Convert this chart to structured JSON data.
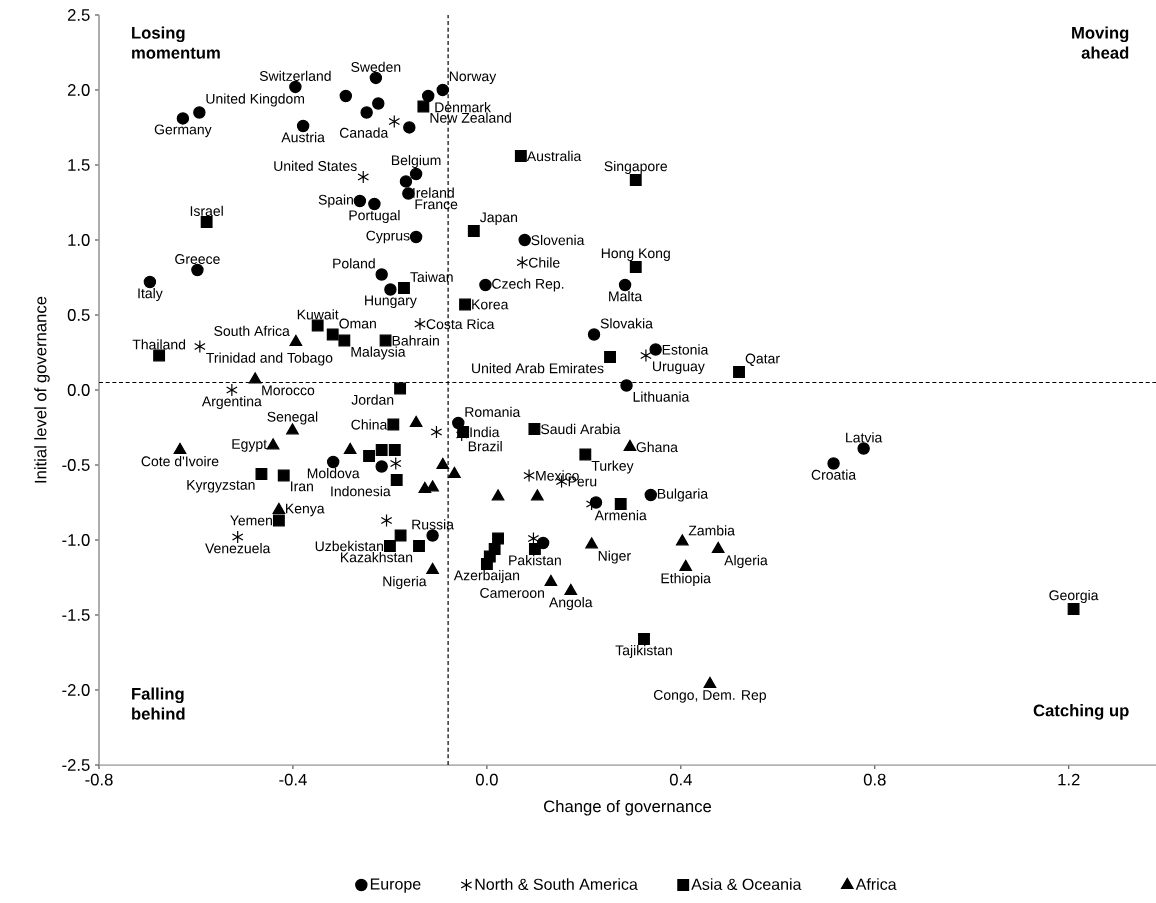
{
  "chart_data": {
    "type": "scatter",
    "xlabel": "Change of governance",
    "ylabel": "Initial level of governance",
    "xlim": [
      -0.8,
      1.38
    ],
    "ylim": [
      -2.5,
      2.5
    ],
    "xticks": [
      {
        "value": -0.8,
        "label": "-0.8"
      },
      {
        "value": -0.4,
        "label": "-0.4"
      },
      {
        "value": 0,
        "label": "0.0"
      },
      {
        "value": 0.4,
        "label": "0.4"
      },
      {
        "value": 0.8,
        "label": "0.8"
      },
      {
        "value": 1.2,
        "label": "1.2"
      }
    ],
    "yticks": [
      {
        "value": -2.5,
        "label": "-2.5"
      },
      {
        "value": -2,
        "label": "-2.0"
      },
      {
        "value": -1.5,
        "label": "-1.5"
      },
      {
        "value": -1,
        "label": "-1.0"
      },
      {
        "value": -0.5,
        "label": "-0.5"
      },
      {
        "value": 0,
        "label": "0.0"
      },
      {
        "value": 0.5,
        "label": "0.5"
      },
      {
        "value": 1,
        "label": "1.0"
      },
      {
        "value": 1.5,
        "label": "1.5"
      },
      {
        "value": 2,
        "label": "2.0"
      },
      {
        "value": 2.5,
        "label": "2.5"
      }
    ],
    "grid": false,
    "legend": "bottom",
    "ref_lines": [
      {
        "axis": "x",
        "value": -0.08,
        "line_style": "dashed"
      },
      {
        "axis": "y",
        "value": 0.05,
        "line_style": "dashed"
      }
    ],
    "series": [
      {
        "name": "Europe",
        "color": "#000000",
        "marker": "circle",
        "x": [
          -0.627,
          -0.593,
          -0.395,
          -0.379,
          -0.291,
          -0.229,
          -0.224,
          -0.248,
          -0.091,
          -0.121,
          -0.16,
          -0.146,
          -0.167,
          -0.162,
          -0.262,
          -0.232,
          -0.146,
          -0.597,
          -0.695,
          -0.217,
          -0.199,
          0.078,
          -0.003,
          0.285,
          0.221,
          0.348,
          0.288,
          -0.059,
          -0.217,
          -0.317,
          -0.112,
          0.338,
          0.225,
          0.116,
          0.715,
          0.777
        ],
        "values": [
          1.81,
          1.85,
          2.02,
          1.76,
          1.96,
          2.08,
          1.91,
          1.85,
          2.0,
          1.96,
          1.75,
          1.44,
          1.39,
          1.31,
          1.26,
          1.24,
          1.02,
          0.8,
          0.72,
          0.77,
          0.67,
          1.0,
          0.7,
          0.7,
          0.37,
          0.27,
          0.03,
          -0.22,
          -0.51,
          -0.48,
          -0.97,
          -0.7,
          -0.75,
          -1.02,
          -0.49,
          -0.39
        ]
      },
      {
        "name": "North & South America",
        "color": "#000000",
        "marker": "cross",
        "x": [
          -0.191,
          -0.255,
          -0.138,
          0.073,
          -0.592,
          -0.526,
          0.328,
          -0.104,
          -0.052,
          -0.188,
          0.087,
          0.154,
          0.216,
          -0.514,
          -0.207,
          0.096
        ],
        "values": [
          1.79,
          1.42,
          0.44,
          0.85,
          0.29,
          0.0,
          0.23,
          -0.28,
          -0.3,
          -0.49,
          -0.57,
          -0.61,
          -0.76,
          -0.98,
          -0.87,
          -0.99
        ]
      },
      {
        "name": "Asia & Oceania",
        "color": "#000000",
        "marker": "square",
        "x": [
          -0.131,
          0.07,
          0.307,
          -0.578,
          -0.027,
          0.307,
          -0.171,
          -0.045,
          -0.349,
          -0.318,
          -0.294,
          -0.209,
          -0.676,
          0.254,
          0.52,
          -0.179,
          -0.193,
          -0.049,
          0.098,
          -0.217,
          -0.19,
          -0.243,
          -0.186,
          0.203,
          -0.465,
          -0.419,
          -0.429,
          0.276,
          -0.2,
          -0.14,
          -0.178,
          0.0,
          0.006,
          0.016,
          0.023,
          0.099,
          0.324,
          1.21
        ],
        "values": [
          1.89,
          1.56,
          1.4,
          1.12,
          1.06,
          0.82,
          0.68,
          0.57,
          0.43,
          0.37,
          0.33,
          0.33,
          0.23,
          0.22,
          0.12,
          0.01,
          -0.23,
          -0.28,
          -0.26,
          -0.4,
          -0.4,
          -0.44,
          -0.6,
          -0.43,
          -0.56,
          -0.57,
          -0.87,
          -0.76,
          -1.04,
          -1.04,
          -0.97,
          -1.16,
          -1.11,
          -1.06,
          -0.99,
          -1.06,
          -1.66,
          -1.46
        ]
      },
      {
        "name": "Africa",
        "color": "#000000",
        "marker": "triangle",
        "x": [
          -0.394,
          -0.478,
          -0.401,
          -0.441,
          -0.633,
          -0.282,
          -0.146,
          -0.091,
          -0.067,
          -0.128,
          -0.112,
          -0.429,
          -0.112,
          0.023,
          0.104,
          0.295,
          0.216,
          0.132,
          0.173,
          0.403,
          0.477,
          0.41,
          0.46
        ],
        "values": [
          0.32,
          0.07,
          -0.27,
          -0.37,
          -0.4,
          -0.4,
          -0.22,
          -0.5,
          -0.56,
          -0.66,
          -0.65,
          -0.8,
          -1.2,
          -0.71,
          -0.71,
          -0.38,
          -1.03,
          -1.28,
          -1.34,
          -1.01,
          -1.06,
          -1.18,
          -1.96
        ]
      }
    ],
    "annotations": [
      "Losing momentum",
      "Moving ahead",
      "Falling behind",
      "Catching up",
      {
        "text": "Germany",
        "x": -0.627,
        "y": 1.81
      },
      {
        "text": "United Kingdom",
        "x": -0.593,
        "y": 1.85
      },
      {
        "text": "Switzerland",
        "x": -0.395,
        "y": 2.02
      },
      {
        "text": "Austria",
        "x": -0.379,
        "y": 1.76
      },
      {
        "text": "Sweden",
        "x": -0.229,
        "y": 2.08
      },
      {
        "text": "Norway",
        "x": -0.091,
        "y": 2.0
      },
      {
        "text": "Denmark",
        "x": -0.121,
        "y": 1.96
      },
      {
        "text": "Belgium",
        "x": -0.146,
        "y": 1.44
      },
      {
        "text": "Ireland",
        "x": -0.167,
        "y": 1.39
      },
      {
        "text": "France",
        "x": -0.162,
        "y": 1.31
      },
      {
        "text": "Spain",
        "x": -0.262,
        "y": 1.26
      },
      {
        "text": "Portugal",
        "x": -0.232,
        "y": 1.24
      },
      {
        "text": "Cyprus",
        "x": -0.146,
        "y": 1.02
      },
      {
        "text": "Greece",
        "x": -0.597,
        "y": 0.8
      },
      {
        "text": "Italy",
        "x": -0.695,
        "y": 0.72
      },
      {
        "text": "Poland",
        "x": -0.217,
        "y": 0.77
      },
      {
        "text": "Hungary",
        "x": -0.199,
        "y": 0.67
      },
      {
        "text": "Slovenia",
        "x": 0.078,
        "y": 1.0
      },
      {
        "text": "Czech Rep.",
        "x": -0.003,
        "y": 0.7
      },
      {
        "text": "Malta",
        "x": 0.285,
        "y": 0.7
      },
      {
        "text": "Slovakia",
        "x": 0.221,
        "y": 0.37
      },
      {
        "text": "Estonia",
        "x": 0.348,
        "y": 0.27
      },
      {
        "text": "Lithuania",
        "x": 0.288,
        "y": 0.03
      },
      {
        "text": "Romania",
        "x": -0.059,
        "y": -0.22
      },
      {
        "text": "Moldova",
        "x": -0.317,
        "y": -0.48
      },
      {
        "text": "Russia",
        "x": -0.112,
        "y": -0.97
      },
      {
        "text": "Bulgaria",
        "x": 0.338,
        "y": -0.7
      },
      {
        "text": "Croatia",
        "x": 0.715,
        "y": -0.49
      },
      {
        "text": "Latvia",
        "x": 0.777,
        "y": -0.39
      },
      {
        "text": "Canada",
        "x": -0.191,
        "y": 1.79
      },
      {
        "text": "United States",
        "x": -0.255,
        "y": 1.42
      },
      {
        "text": "Costa Rica",
        "x": -0.138,
        "y": 0.44
      },
      {
        "text": "Chile",
        "x": 0.073,
        "y": 0.85
      },
      {
        "text": "Trinidad and Tobago",
        "x": -0.592,
        "y": 0.29
      },
      {
        "text": "Argentina",
        "x": -0.526,
        "y": 0.0
      },
      {
        "text": "Uruguay",
        "x": 0.328,
        "y": 0.23
      },
      {
        "text": "Brazil",
        "x": -0.052,
        "y": -0.3
      },
      {
        "text": "Mexico",
        "x": 0.087,
        "y": -0.57
      },
      {
        "text": "Peru",
        "x": 0.154,
        "y": -0.61
      },
      {
        "text": "Venezuela",
        "x": -0.514,
        "y": -0.98
      },
      {
        "text": "New Zealand",
        "x": -0.131,
        "y": 1.89
      },
      {
        "text": "Australia",
        "x": 0.07,
        "y": 1.56
      },
      {
        "text": "Singapore",
        "x": 0.307,
        "y": 1.4
      },
      {
        "text": "Israel",
        "x": -0.578,
        "y": 1.12
      },
      {
        "text": "Japan",
        "x": -0.027,
        "y": 1.06
      },
      {
        "text": "Hong Kong",
        "x": 0.307,
        "y": 0.82
      },
      {
        "text": "Taiwan",
        "x": -0.171,
        "y": 0.68
      },
      {
        "text": "Korea",
        "x": -0.045,
        "y": 0.57
      },
      {
        "text": "Kuwait",
        "x": -0.349,
        "y": 0.43
      },
      {
        "text": "Oman",
        "x": -0.318,
        "y": 0.37
      },
      {
        "text": "Malaysia",
        "x": -0.294,
        "y": 0.33
      },
      {
        "text": "Bahrain",
        "x": -0.209,
        "y": 0.33
      },
      {
        "text": "Thailand",
        "x": -0.676,
        "y": 0.23
      },
      {
        "text": "United Arab Emirates",
        "x": 0.254,
        "y": 0.22
      },
      {
        "text": "Qatar",
        "x": 0.52,
        "y": 0.12
      },
      {
        "text": "Jordan",
        "x": -0.179,
        "y": 0.01
      },
      {
        "text": "China",
        "x": -0.193,
        "y": -0.23
      },
      {
        "text": "India",
        "x": -0.049,
        "y": -0.28
      },
      {
        "text": "Saudi Arabia",
        "x": 0.098,
        "y": -0.26
      },
      {
        "text": "Indonesia",
        "x": -0.186,
        "y": -0.6
      },
      {
        "text": "Turkey",
        "x": 0.203,
        "y": -0.43
      },
      {
        "text": "Kyrgyzstan",
        "x": -0.465,
        "y": -0.56
      },
      {
        "text": "Iran",
        "x": -0.419,
        "y": -0.57
      },
      {
        "text": "Yemen",
        "x": -0.429,
        "y": -0.87
      },
      {
        "text": "Armenia",
        "x": 0.276,
        "y": -0.76
      },
      {
        "text": "Uzbekistan",
        "x": -0.2,
        "y": -1.04
      },
      {
        "text": "Kazakhstan",
        "x": -0.14,
        "y": -1.04
      },
      {
        "text": "Azerbaijan",
        "x": 0.0,
        "y": -1.16
      },
      {
        "text": "Pakistan",
        "x": 0.099,
        "y": -1.06
      },
      {
        "text": "Tajikistan",
        "x": 0.324,
        "y": -1.66
      },
      {
        "text": "Georgia",
        "x": 1.21,
        "y": -1.46
      },
      {
        "text": "South Africa",
        "x": -0.394,
        "y": 0.32
      },
      {
        "text": "Morocco",
        "x": -0.478,
        "y": 0.07
      },
      {
        "text": "Senegal",
        "x": -0.401,
        "y": -0.27
      },
      {
        "text": "Egypt",
        "x": -0.441,
        "y": -0.37
      },
      {
        "text": "Cote d'Ivoire",
        "x": -0.633,
        "y": -0.4
      },
      {
        "text": "Kenya",
        "x": -0.429,
        "y": -0.8
      },
      {
        "text": "Nigeria",
        "x": -0.112,
        "y": -1.2
      },
      {
        "text": "Ghana",
        "x": 0.295,
        "y": -0.38
      },
      {
        "text": "Niger",
        "x": 0.216,
        "y": -1.03
      },
      {
        "text": "Cameroon",
        "x": 0.132,
        "y": -1.28
      },
      {
        "text": "Angola",
        "x": 0.173,
        "y": -1.34
      },
      {
        "text": "Zambia",
        "x": 0.403,
        "y": -1.01
      },
      {
        "text": "Algeria",
        "x": 0.477,
        "y": -1.06
      },
      {
        "text": "Ethiopia",
        "x": 0.41,
        "y": -1.18
      },
      {
        "text": "Congo, Dem. Rep",
        "x": 0.46,
        "y": -1.96
      }
    ]
  }
}
